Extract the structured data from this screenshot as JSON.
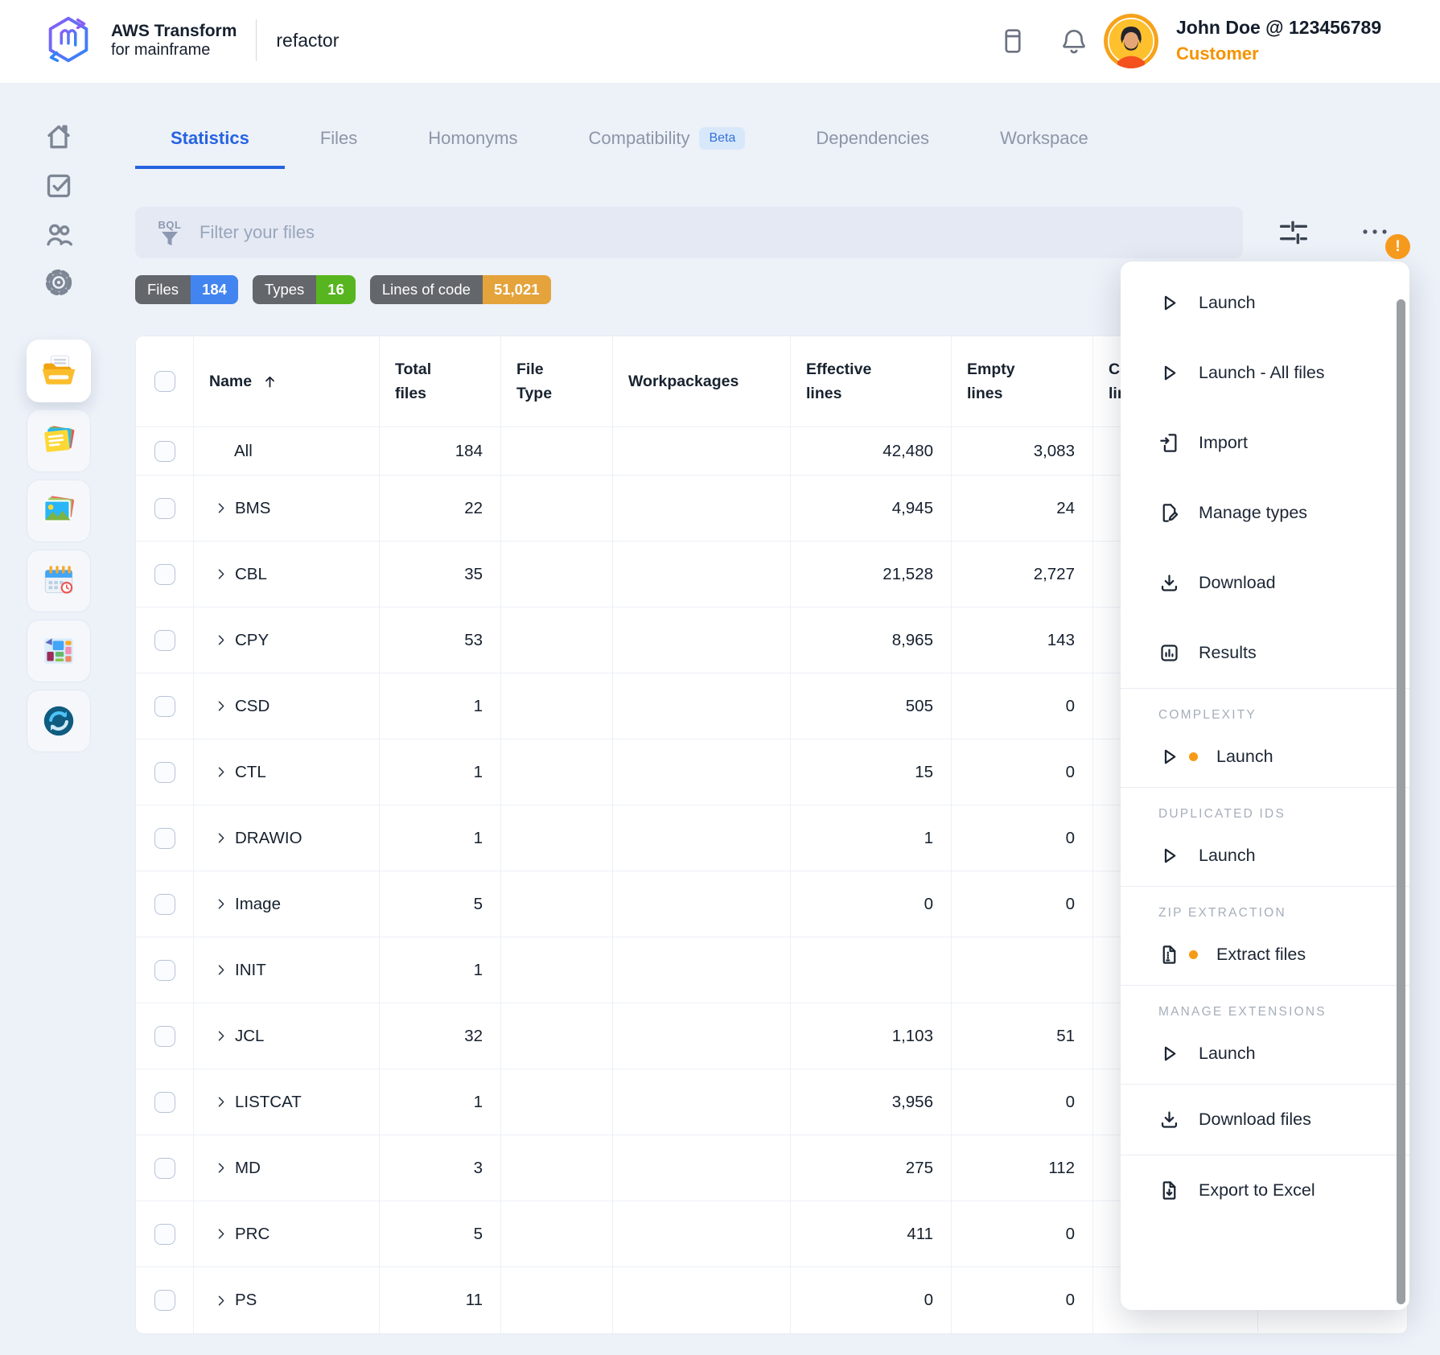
{
  "colors": {
    "accent": "#2663e0",
    "files_badge": "#4285f0",
    "types_badge": "#57b51f",
    "loc_badge": "#e5a33c",
    "alert_orange": "#f69a1d",
    "role_orange": "#f59300"
  },
  "header": {
    "brand_title": "AWS Transform",
    "brand_subtitle": "for mainframe",
    "product": "refactor",
    "icons": [
      "whitepaper-icon",
      "bell-icon"
    ],
    "user_name": "John Doe @ 123456789",
    "user_role": "Customer"
  },
  "sidebar": {
    "nav": [
      {
        "icon": "home-icon"
      },
      {
        "icon": "tasks-icon"
      },
      {
        "icon": "users-icon"
      },
      {
        "icon": "settings-icon"
      }
    ],
    "apps": [
      {
        "icon": "documents-app-icon",
        "active": true
      },
      {
        "icon": "notes-app-icon"
      },
      {
        "icon": "photos-app-icon"
      },
      {
        "icon": "calendar-app-icon"
      },
      {
        "icon": "dashboard-app-icon"
      },
      {
        "icon": "sync-app-icon"
      }
    ]
  },
  "tabs": [
    {
      "label": "Statistics",
      "active": true
    },
    {
      "label": "Files"
    },
    {
      "label": "Homonyms"
    },
    {
      "label": "Compatibility",
      "badge": "Beta"
    },
    {
      "label": "Dependencies"
    },
    {
      "label": "Workspace"
    }
  ],
  "filter": {
    "tag": "BQL",
    "icon": "funnel-icon",
    "placeholder": "Filter your files"
  },
  "toolbar": {
    "icons": [
      "sliders-icon",
      "overflow-menu-icon"
    ],
    "alert": "!"
  },
  "summary_badges": [
    {
      "label": "Files",
      "value": "184",
      "color": "#4285f0"
    },
    {
      "label": "Types",
      "value": "16",
      "color": "#57b51f"
    },
    {
      "label": "Lines of code",
      "value": "51,021",
      "color": "#e5a33c"
    }
  ],
  "table": {
    "columns": [
      "Name",
      "Total files",
      "File Type",
      "Workpackages",
      "Effective lines",
      "Empty lines",
      "Comment lines"
    ],
    "sort": {
      "column": "Name",
      "direction": "asc",
      "icon": "arrow-up-icon"
    },
    "rows": [
      {
        "name": "All",
        "expandable": false,
        "total": "184",
        "file_type": "",
        "workpackages": "",
        "effective": "42,480",
        "empty": "3,083"
      },
      {
        "name": "BMS",
        "expandable": true,
        "total": "22",
        "file_type": "",
        "workpackages": "",
        "effective": "4,945",
        "empty": "24"
      },
      {
        "name": "CBL",
        "expandable": true,
        "total": "35",
        "file_type": "",
        "workpackages": "",
        "effective": "21,528",
        "empty": "2,727"
      },
      {
        "name": "CPY",
        "expandable": true,
        "total": "53",
        "file_type": "",
        "workpackages": "",
        "effective": "8,965",
        "empty": "143"
      },
      {
        "name": "CSD",
        "expandable": true,
        "total": "1",
        "file_type": "",
        "workpackages": "",
        "effective": "505",
        "empty": "0"
      },
      {
        "name": "CTL",
        "expandable": true,
        "total": "1",
        "file_type": "",
        "workpackages": "",
        "effective": "15",
        "empty": "0"
      },
      {
        "name": "DRAWIO",
        "expandable": true,
        "total": "1",
        "file_type": "",
        "workpackages": "",
        "effective": "1",
        "empty": "0"
      },
      {
        "name": "Image",
        "expandable": true,
        "total": "5",
        "file_type": "",
        "workpackages": "",
        "effective": "0",
        "empty": "0"
      },
      {
        "name": "INIT",
        "expandable": true,
        "total": "1",
        "file_type": "",
        "workpackages": "",
        "effective": "",
        "empty": ""
      },
      {
        "name": "JCL",
        "expandable": true,
        "total": "32",
        "file_type": "",
        "workpackages": "",
        "effective": "1,103",
        "empty": "51"
      },
      {
        "name": "LISTCAT",
        "expandable": true,
        "total": "1",
        "file_type": "",
        "workpackages": "",
        "effective": "3,956",
        "empty": "0"
      },
      {
        "name": "MD",
        "expandable": true,
        "total": "3",
        "file_type": "",
        "workpackages": "",
        "effective": "275",
        "empty": "112"
      },
      {
        "name": "PRC",
        "expandable": true,
        "total": "5",
        "file_type": "",
        "workpackages": "",
        "effective": "411",
        "empty": "0"
      },
      {
        "name": "PS",
        "expandable": true,
        "total": "11",
        "file_type": "",
        "workpackages": "",
        "effective": "0",
        "empty": "0"
      }
    ]
  },
  "menu": {
    "sections": [
      {
        "title": "",
        "items": [
          {
            "label": "Launch",
            "icon": "play-icon"
          },
          {
            "label": "Launch - All files",
            "icon": "play-icon"
          },
          {
            "label": "Import",
            "icon": "import-icon"
          },
          {
            "label": "Manage types",
            "icon": "file-edit-icon"
          },
          {
            "label": "Download",
            "icon": "download-icon"
          },
          {
            "label": "Results",
            "icon": "results-icon"
          }
        ]
      },
      {
        "title": "COMPLEXITY",
        "items": [
          {
            "label": "Launch",
            "icon": "play-icon",
            "dot": true
          }
        ]
      },
      {
        "title": "DUPLICATED IDS",
        "items": [
          {
            "label": "Launch",
            "icon": "play-icon"
          }
        ]
      },
      {
        "title": "ZIP EXTRACTION",
        "items": [
          {
            "label": "Extract files",
            "icon": "zip-file-icon",
            "dot": true
          }
        ]
      },
      {
        "title": "MANAGE EXTENSIONS",
        "items": [
          {
            "label": "Launch",
            "icon": "play-icon"
          }
        ]
      },
      {
        "title": "",
        "items": [
          {
            "label": "Download files",
            "icon": "download-icon"
          }
        ]
      },
      {
        "title": "",
        "items": [
          {
            "label": "Export to Excel",
            "icon": "file-down-icon"
          }
        ]
      }
    ]
  }
}
